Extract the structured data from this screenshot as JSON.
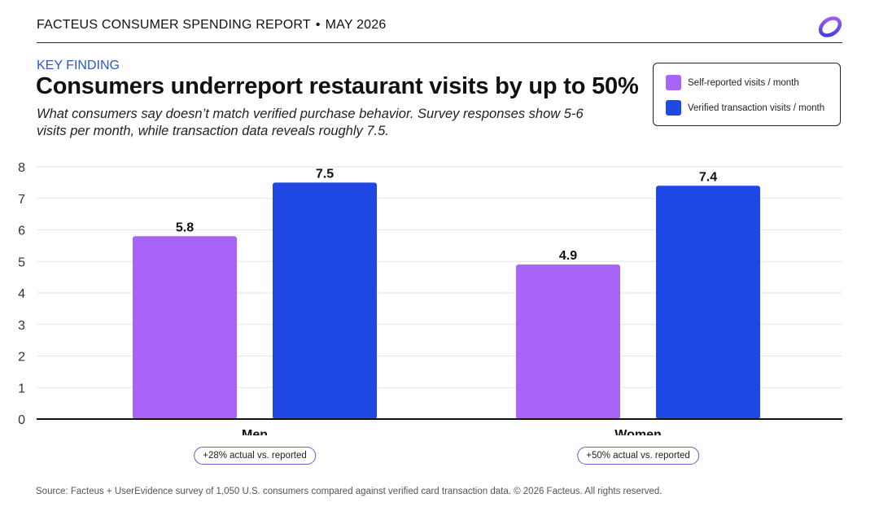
{
  "header": {
    "report": "FACTEUS CONSUMER SPENDING REPORT",
    "date": "MAY 2026"
  },
  "kicker": "KEY FINDING",
  "title": "Consumers underreport restaurant visits by up to 50%",
  "subtitle": "What consumers say doesn’t match verified purchase behavior. Survey responses show 5-6 visits per month, while transaction data reveals roughly 7.5.",
  "legend": [
    {
      "label": "Self-reported visits / month",
      "color": "#a963f7"
    },
    {
      "label": "Verified transaction visits / month",
      "color": "#1f48e5"
    }
  ],
  "annotations": [
    "+28% actual vs. reported",
    "+50% actual vs. reported"
  ],
  "source": "Source: Facteus + UserEvidence survey of 1,050 U.S. consumers compared against verified card transaction data. © 2026 Facteus. All rights reserved.",
  "chart_data": {
    "type": "bar",
    "categories": [
      "Men",
      "Women"
    ],
    "series": [
      {
        "name": "Self-reported visits / month",
        "values": [
          5.8,
          4.9
        ],
        "color": "#a963f7"
      },
      {
        "name": "Verified transaction visits / month",
        "values": [
          7.5,
          7.4
        ],
        "color": "#1f48e5"
      }
    ],
    "ylim": [
      0,
      8
    ],
    "yticks": [
      0,
      1,
      2,
      3,
      4,
      5,
      6,
      7,
      8
    ],
    "grid": true,
    "legend_position": "top-right"
  }
}
